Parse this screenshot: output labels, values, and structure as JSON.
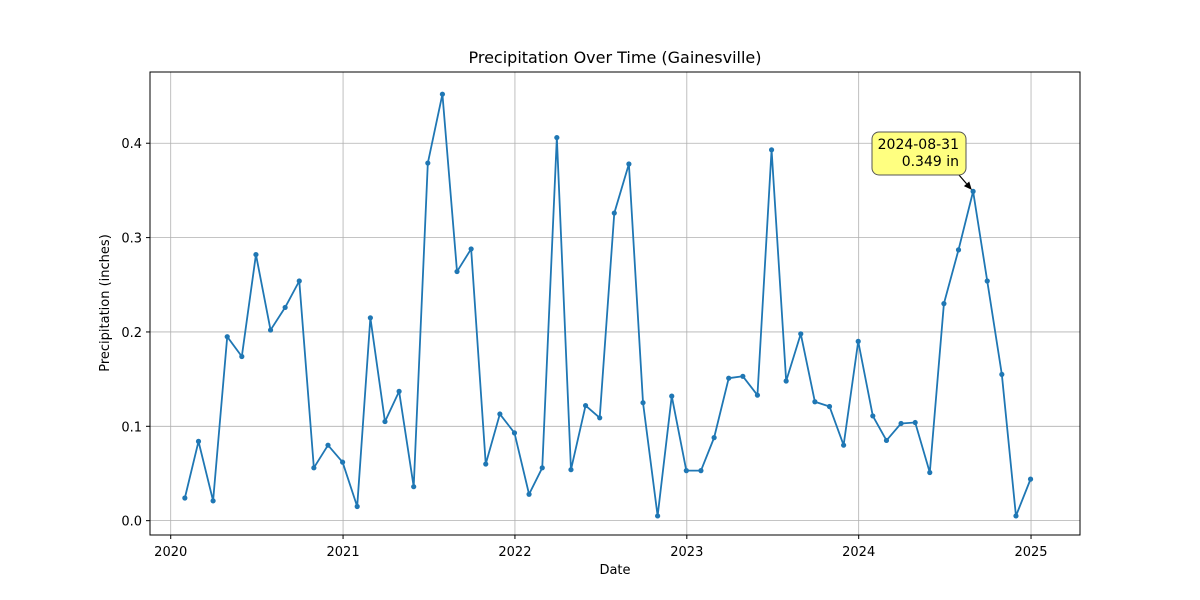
{
  "chart_data": {
    "type": "line",
    "title": "Precipitation Over Time (Gainesville)",
    "xlabel": "Date",
    "ylabel": "Precipitation (inches)",
    "xlim": [
      "2019-11-18",
      "2025-04-15"
    ],
    "ylim": [
      -0.0152,
      0.4755
    ],
    "grid": true,
    "color": "#1f77b4",
    "x_ticks": [
      "2020",
      "2021",
      "2022",
      "2023",
      "2024",
      "2025"
    ],
    "x_tick_dates": [
      "2020-01-01",
      "2021-01-01",
      "2022-01-01",
      "2023-01-01",
      "2024-01-01",
      "2025-01-01"
    ],
    "y_ticks": [
      "0.0",
      "0.1",
      "0.2",
      "0.3",
      "0.4"
    ],
    "y_tick_values": [
      0.0,
      0.1,
      0.2,
      0.3,
      0.4
    ],
    "series": [
      {
        "x": [
          "2020-01-31",
          "2020-02-29",
          "2020-03-31",
          "2020-04-30",
          "2020-05-31",
          "2020-06-30",
          "2020-07-31",
          "2020-08-31",
          "2020-09-30",
          "2020-10-31",
          "2020-11-30",
          "2020-12-31",
          "2021-01-31",
          "2021-02-28",
          "2021-03-31",
          "2021-04-30",
          "2021-05-31",
          "2021-06-30",
          "2021-07-31",
          "2021-08-31",
          "2021-09-30",
          "2021-10-31",
          "2021-11-30",
          "2021-12-31",
          "2022-01-31",
          "2022-02-28",
          "2022-03-31",
          "2022-04-30",
          "2022-05-31",
          "2022-06-30",
          "2022-07-31",
          "2022-08-31",
          "2022-09-30",
          "2022-10-31",
          "2022-11-30",
          "2022-12-31",
          "2023-01-31",
          "2023-02-28",
          "2023-03-31",
          "2023-04-30",
          "2023-05-31",
          "2023-06-30",
          "2023-07-31",
          "2023-08-31",
          "2023-09-30",
          "2023-10-31",
          "2023-11-30",
          "2023-12-31",
          "2024-01-31",
          "2024-02-29",
          "2024-03-31",
          "2024-04-30",
          "2024-05-31",
          "2024-06-30",
          "2024-07-31",
          "2024-08-31",
          "2024-09-30",
          "2024-10-31",
          "2024-11-30",
          "2024-12-31"
        ],
        "y": [
          0.024,
          0.084,
          0.021,
          0.195,
          0.174,
          0.282,
          0.202,
          0.226,
          0.254,
          0.056,
          0.08,
          0.062,
          0.015,
          0.215,
          0.105,
          0.137,
          0.036,
          0.379,
          0.452,
          0.264,
          0.288,
          0.06,
          0.113,
          0.093,
          0.028,
          0.056,
          0.406,
          0.054,
          0.122,
          0.109,
          0.326,
          0.378,
          0.125,
          0.005,
          0.132,
          0.053,
          0.053,
          0.088,
          0.151,
          0.153,
          0.133,
          0.393,
          0.148,
          0.198,
          0.126,
          0.121,
          0.08,
          0.19,
          0.111,
          0.085,
          0.103,
          0.104,
          0.051,
          0.23,
          0.287,
          0.349,
          0.254,
          0.155,
          0.005,
          0.044
        ]
      }
    ],
    "annotation": {
      "date": "2024-08-31",
      "value": 0.349,
      "line1": "2024-08-31",
      "line2": "0.349 in",
      "box_color": "#ffff80"
    }
  }
}
